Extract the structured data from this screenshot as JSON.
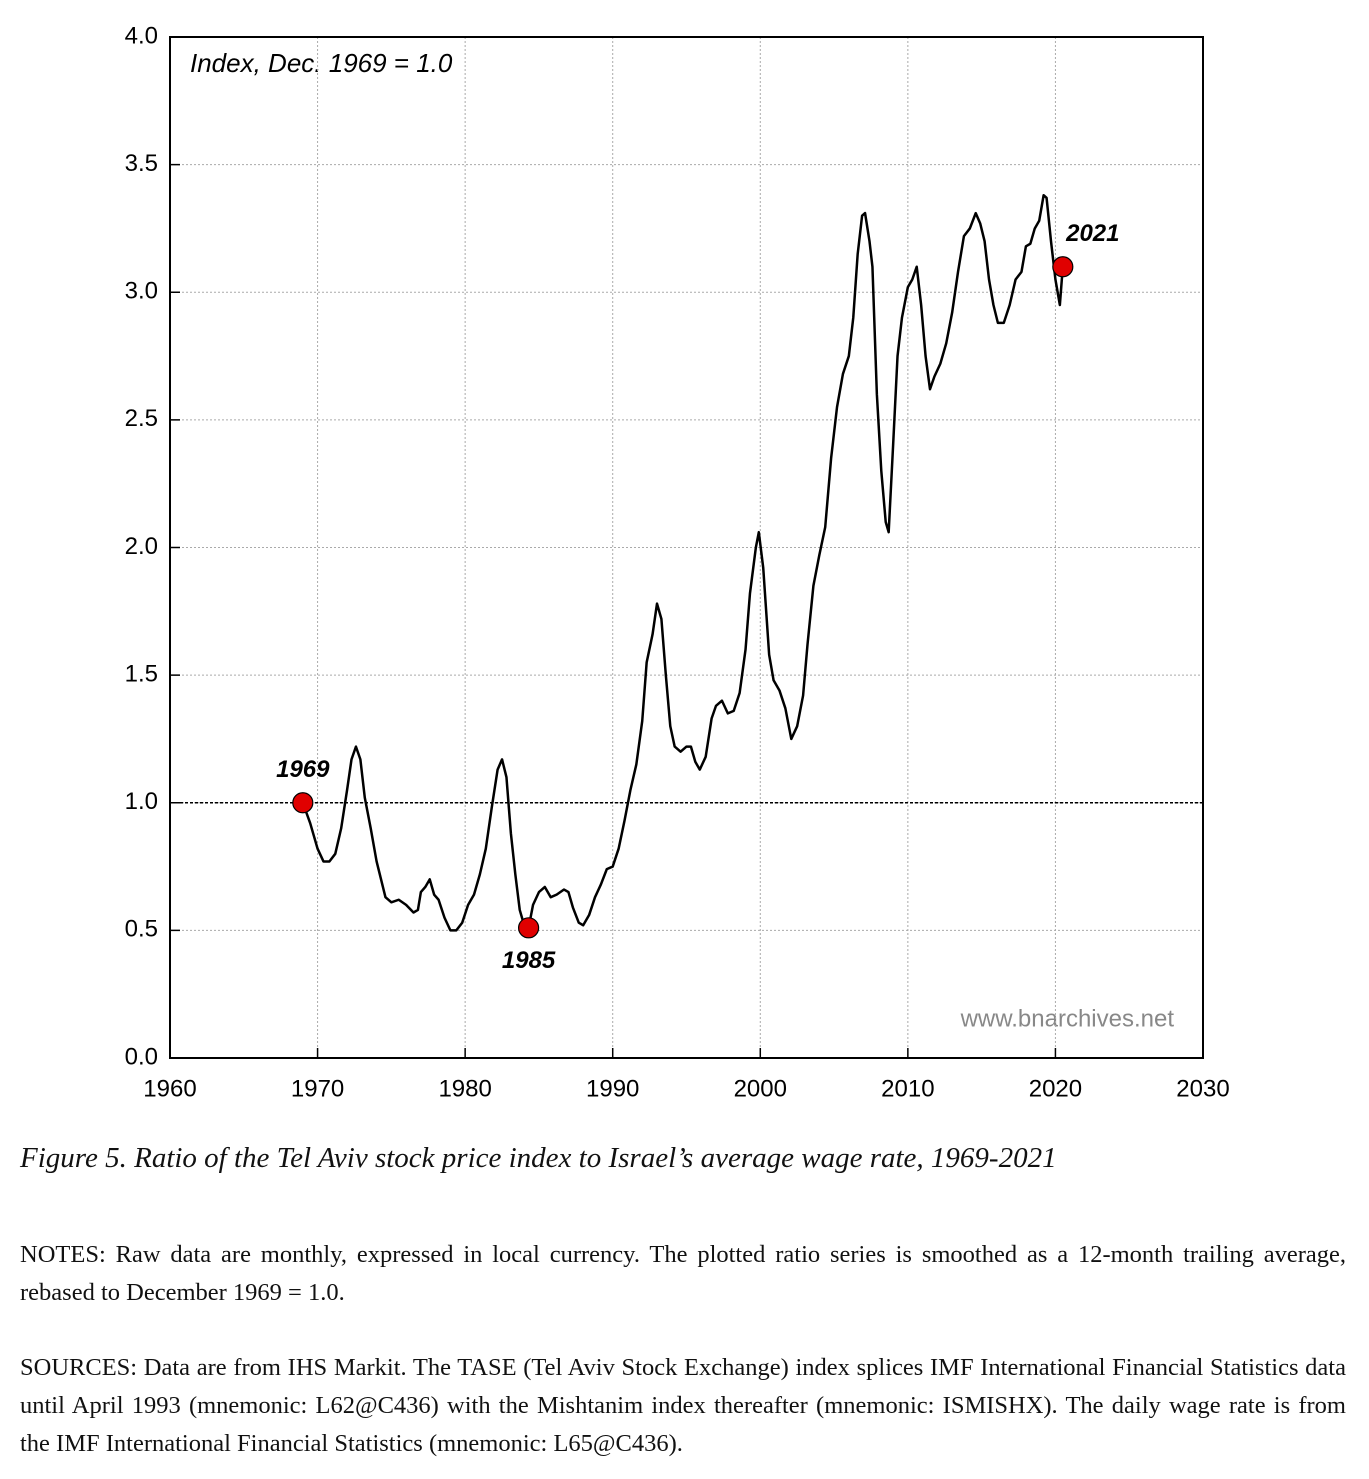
{
  "chart_data": {
    "type": "line",
    "annotation": "Index, Dec. 1969 = 1.0",
    "watermark": "www.bnarchives.net",
    "color": "#000000",
    "reference_line": 1.0,
    "grid": true,
    "xlim": [
      1960,
      2030
    ],
    "xticks": [
      1960,
      1970,
      1980,
      1990,
      2000,
      2010,
      2020,
      2030
    ],
    "ylim": [
      0,
      4
    ],
    "yticks": [
      {
        "value": 0,
        "label": "0.0"
      },
      0.5,
      {
        "value": 1,
        "label": "1.0"
      },
      1.5,
      {
        "value": 2,
        "label": "2.0"
      },
      2.5,
      {
        "value": 3,
        "label": "3.0"
      },
      3.5,
      {
        "value": 4,
        "label": "4.0"
      }
    ],
    "x": [
      1969.0,
      1969.5,
      1970.0,
      1970.4,
      1970.8,
      1971.2,
      1971.6,
      1972.0,
      1972.3,
      1972.6,
      1972.9,
      1973.2,
      1973.6,
      1974.0,
      1974.3,
      1974.6,
      1975.0,
      1975.5,
      1976.0,
      1976.5,
      1976.8,
      1977.0,
      1977.3,
      1977.6,
      1977.9,
      1978.2,
      1978.6,
      1979.0,
      1979.4,
      1979.8,
      1980.2,
      1980.6,
      1981.0,
      1981.4,
      1981.8,
      1982.2,
      1982.5,
      1982.8,
      1983.1,
      1983.4,
      1983.7,
      1984.0,
      1984.3,
      1984.6,
      1985.0,
      1985.4,
      1985.8,
      1986.2,
      1986.7,
      1987.0,
      1987.3,
      1987.7,
      1988.0,
      1988.4,
      1988.8,
      1989.2,
      1989.6,
      1990.0,
      1990.4,
      1990.8,
      1991.2,
      1991.6,
      1992.0,
      1992.3,
      1992.7,
      1993.0,
      1993.3,
      1993.6,
      1993.9,
      1994.2,
      1994.6,
      1995.0,
      1995.3,
      1995.6,
      1995.9,
      1996.3,
      1996.7,
      1997.0,
      1997.4,
      1997.8,
      1998.2,
      1998.6,
      1999.0,
      1999.3,
      1999.7,
      1999.9,
      2000.2,
      2000.6,
      2000.9,
      2001.3,
      2001.7,
      2002.1,
      2002.5,
      2002.9,
      2003.2,
      2003.6,
      2004.0,
      2004.4,
      2004.8,
      2005.2,
      2005.6,
      2006.0,
      2006.3,
      2006.6,
      2006.9,
      2007.1,
      2007.4,
      2007.6,
      2007.9,
      2008.2,
      2008.5,
      2008.7,
      2009.0,
      2009.3,
      2009.6,
      2010.0,
      2010.3,
      2010.6,
      2010.9,
      2011.2,
      2011.5,
      2011.8,
      2012.2,
      2012.6,
      2013.0,
      2013.4,
      2013.8,
      2014.2,
      2014.6,
      2014.9,
      2015.2,
      2015.5,
      2015.8,
      2016.1,
      2016.5,
      2016.9,
      2017.3,
      2017.7,
      2018.0,
      2018.3,
      2018.6,
      2018.9,
      2019.2,
      2019.4,
      2019.7,
      2020.0,
      2020.3,
      2020.5
    ],
    "values": [
      1.0,
      0.92,
      0.82,
      0.77,
      0.77,
      0.8,
      0.9,
      1.05,
      1.17,
      1.22,
      1.17,
      1.02,
      0.9,
      0.77,
      0.7,
      0.63,
      0.61,
      0.62,
      0.6,
      0.57,
      0.58,
      0.65,
      0.67,
      0.7,
      0.64,
      0.62,
      0.55,
      0.5,
      0.5,
      0.53,
      0.6,
      0.64,
      0.72,
      0.82,
      0.98,
      1.13,
      1.17,
      1.1,
      0.88,
      0.72,
      0.58,
      0.52,
      0.51,
      0.6,
      0.65,
      0.67,
      0.63,
      0.64,
      0.66,
      0.65,
      0.59,
      0.53,
      0.52,
      0.56,
      0.63,
      0.68,
      0.74,
      0.75,
      0.82,
      0.93,
      1.05,
      1.15,
      1.32,
      1.55,
      1.66,
      1.78,
      1.72,
      1.5,
      1.3,
      1.22,
      1.2,
      1.22,
      1.22,
      1.16,
      1.13,
      1.18,
      1.33,
      1.38,
      1.4,
      1.35,
      1.36,
      1.43,
      1.6,
      1.82,
      2.0,
      2.06,
      1.92,
      1.58,
      1.48,
      1.44,
      1.37,
      1.25,
      1.3,
      1.42,
      1.62,
      1.85,
      1.97,
      2.08,
      2.35,
      2.55,
      2.68,
      2.75,
      2.9,
      3.15,
      3.3,
      3.31,
      3.2,
      3.1,
      2.6,
      2.3,
      2.1,
      2.06,
      2.4,
      2.75,
      2.9,
      3.02,
      3.05,
      3.1,
      2.95,
      2.75,
      2.62,
      2.67,
      2.72,
      2.8,
      2.92,
      3.08,
      3.22,
      3.25,
      3.31,
      3.27,
      3.2,
      3.05,
      2.95,
      2.88,
      2.88,
      2.95,
      3.05,
      3.08,
      3.18,
      3.19,
      3.25,
      3.28,
      3.38,
      3.37,
      3.2,
      3.05,
      2.95,
      3.1
    ],
    "markers": [
      {
        "label": "1969",
        "x": 1969.0,
        "y": 1.0
      },
      {
        "label": "1985",
        "x": 1984.3,
        "y": 0.51
      },
      {
        "label": "2021",
        "x": 2020.5,
        "y": 3.1
      }
    ],
    "marker_color": "#e00000"
  },
  "caption": "Figure 5. Ratio of the Tel Aviv stock price index to Israel’s average wage rate, 1969-2021",
  "notes": "NOTES: Raw data are monthly, expressed in local currency. The plotted ratio series is smoothed as a 12-month trailing average, rebased to December 1969 = 1.0.",
  "sources": "SOURCES: Data are from IHS Markit. The TASE (Tel Aviv Stock Exchange) index splices IMF International Financial Statistics data until April 1993 (mnemonic: L62@C436) with the Mishtanim index thereafter (mnemonic: ISMISHX). The daily wage rate is from the IMF International Financial Statistics (mnemonic: L65@C436)."
}
